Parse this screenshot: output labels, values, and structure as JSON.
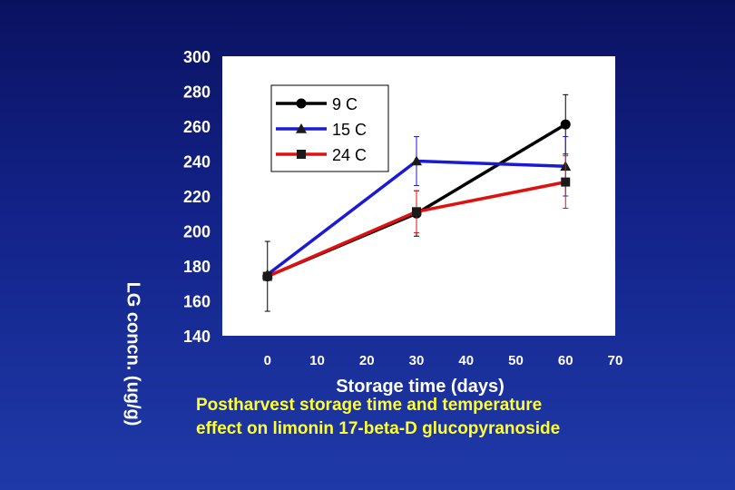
{
  "chart_data": {
    "type": "line",
    "x": [
      0,
      30,
      60
    ],
    "series": [
      {
        "name": "9 C",
        "color": "#000000",
        "marker": "circle",
        "values": [
          174,
          210,
          261
        ],
        "error": [
          20,
          13,
          17
        ]
      },
      {
        "name": "15 C",
        "color": "#1a1ad6",
        "marker": "triangle",
        "values": [
          175,
          240,
          237
        ],
        "error": [
          0,
          14,
          17
        ]
      },
      {
        "name": "24 C",
        "color": "#e01010",
        "marker": "square",
        "values": [
          174,
          211,
          228
        ],
        "error": [
          0,
          12,
          15
        ]
      }
    ],
    "xlabel": "Storage time (days)",
    "ylabel": "LG concn. (ug/g)",
    "xlim": [
      -10,
      70
    ],
    "ylim": [
      140,
      300
    ],
    "xticks": [
      "0",
      "10",
      "20",
      "30",
      "40",
      "50",
      "60",
      "70"
    ],
    "yticks": [
      "140",
      "160",
      "180",
      "200",
      "220",
      "240",
      "260",
      "280",
      "300"
    ],
    "legend_position": "top-left",
    "grid": false
  },
  "caption": {
    "line1": "Postharvest storage time and temperature",
    "line2": "effect on limonin 17-beta-D glucopyranoside"
  }
}
